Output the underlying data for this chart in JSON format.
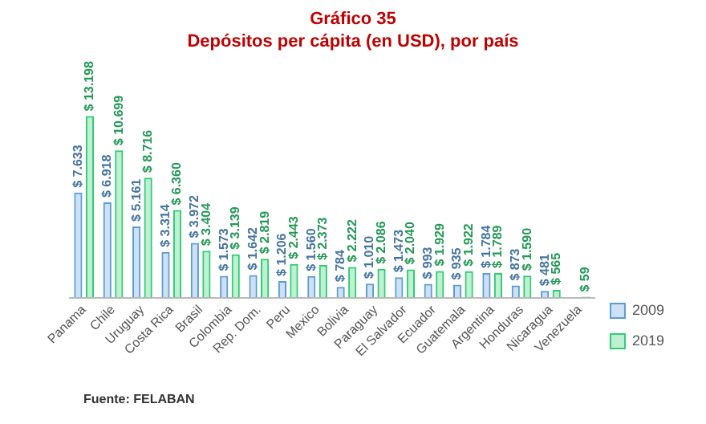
{
  "chart_data": {
    "type": "bar",
    "title": "Gráfico 35",
    "subtitle": "Depósitos per cápita (en USD), por país",
    "categories": [
      "Panama",
      "Chile",
      "Uruguay",
      "Costa Rica",
      "Brasil",
      "Colombia",
      "Rep. Dom.",
      "Peru",
      "Mexico",
      "Bolivia",
      "Paraguay",
      "El Salvador",
      "Ecuador",
      "Guatemala",
      "Argentina",
      "Honduras",
      "Nicaragua",
      "Venezuela"
    ],
    "series": [
      {
        "name": "2009",
        "color": "#5b9bd5",
        "values": [
          7633,
          6918,
          5161,
          3314,
          3972,
          1573,
          1642,
          1206,
          1560,
          784,
          1010,
          1473,
          993,
          935,
          1784,
          873,
          481,
          null
        ],
        "value_labels": [
          "$ 7.633",
          "$ 6.918",
          "$ 5.161",
          "$ 3.314",
          "$ 3.972",
          "$ 1.573",
          "$ 1.642",
          "$ 1.206",
          "$ 1.560",
          "$ 784",
          "$ 1.010",
          "$ 1.473",
          "$ 993",
          "$ 935",
          "$ 1.784",
          "$ 873",
          "$ 481",
          null
        ]
      },
      {
        "name": "2019",
        "color": "#2ecc71",
        "values": [
          13198,
          10699,
          8716,
          6360,
          3404,
          3139,
          2819,
          2443,
          2373,
          2222,
          2086,
          2040,
          1929,
          1922,
          1789,
          1590,
          565,
          59
        ],
        "value_labels": [
          "$ 13.198",
          "$ 10.699",
          "$ 8.716",
          "$ 6.360",
          "$ 3.404",
          "$ 3.139",
          "$ 2.819",
          "$ 2.443",
          "$ 2.373",
          "$ 2.222",
          "$ 2.086",
          "$ 2.040",
          "$ 1.929",
          "$ 1.922",
          "$ 1.789",
          "$ 1.590",
          "$ 565",
          "$ 59"
        ]
      }
    ],
    "legend": "right",
    "grid": false,
    "annotations": [
      "Fuente: FELABAN"
    ]
  }
}
